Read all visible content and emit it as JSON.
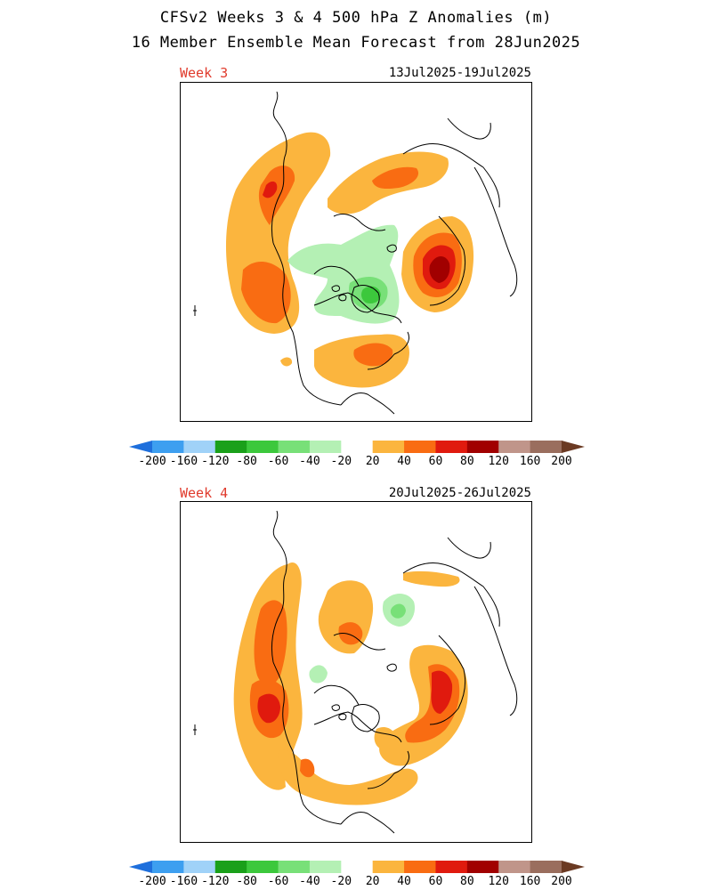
{
  "title_line1": "CFSv2 Weeks 3 & 4 500 hPa Z Anomalies (m)",
  "title_line2": "16 Member Ensemble Mean Forecast from 28Jun2025",
  "panels": [
    {
      "label": "Week 3",
      "dates": "13Jul2025-19Jul2025"
    },
    {
      "label": "Week 4",
      "dates": "20Jul2025-26Jul2025"
    }
  ],
  "colorbar": {
    "ticks": [
      "-200",
      "-160",
      "-120",
      "-80",
      "-60",
      "-40",
      "-20",
      "20",
      "40",
      "60",
      "80",
      "120",
      "160",
      "200"
    ],
    "colors": [
      "#1e6fdc",
      "#3d9ff0",
      "#a0d2f8",
      "#1aa01a",
      "#3cc83c",
      "#78e078",
      "#b4f0b4",
      "#ffffff",
      "#fbb53e",
      "#f96c12",
      "#e01a0e",
      "#a10000",
      "#c0958a",
      "#9a6e5e",
      "#6b3a23"
    ]
  },
  "colors": {
    "pos20": "#fbb53e",
    "pos40": "#f96c12",
    "pos60": "#e01a0e",
    "pos80": "#a10000",
    "neg20": "#b4f0b4",
    "neg40": "#78e078",
    "neg60": "#3cc83c",
    "label_red": "#e03a2c"
  }
}
